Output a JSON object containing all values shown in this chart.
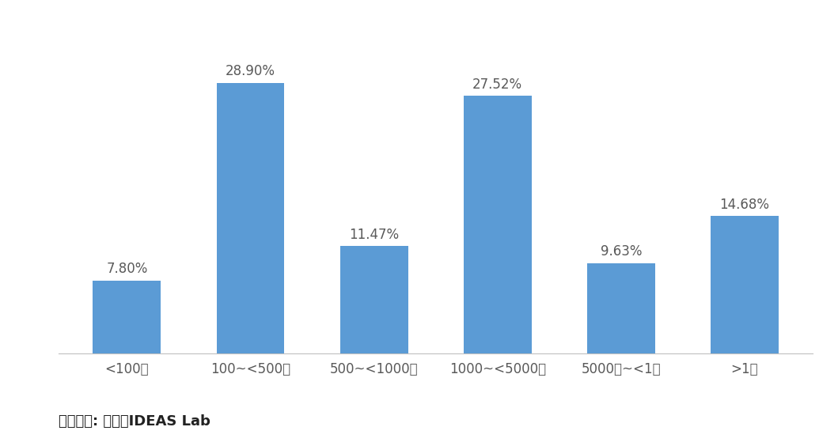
{
  "categories": [
    "<100万",
    "100~<500万",
    "500~<1000万",
    "1000~<5000万",
    "5000万~<1億",
    ">1億"
  ],
  "values": [
    7.8,
    28.9,
    11.47,
    27.52,
    9.63,
    14.68
  ],
  "labels": [
    "7.80%",
    "28.90%",
    "11.47%",
    "27.52%",
    "9.63%",
    "14.68%"
  ],
  "bar_color": "#5B9BD5",
  "background_color": "#FFFFFF",
  "ylim": [
    0,
    34
  ],
  "label_fontsize": 12,
  "tick_fontsize": 12,
  "source_text": "資料來源: 資策會IDEAS Lab",
  "source_fontsize": 13,
  "bar_width": 0.55
}
